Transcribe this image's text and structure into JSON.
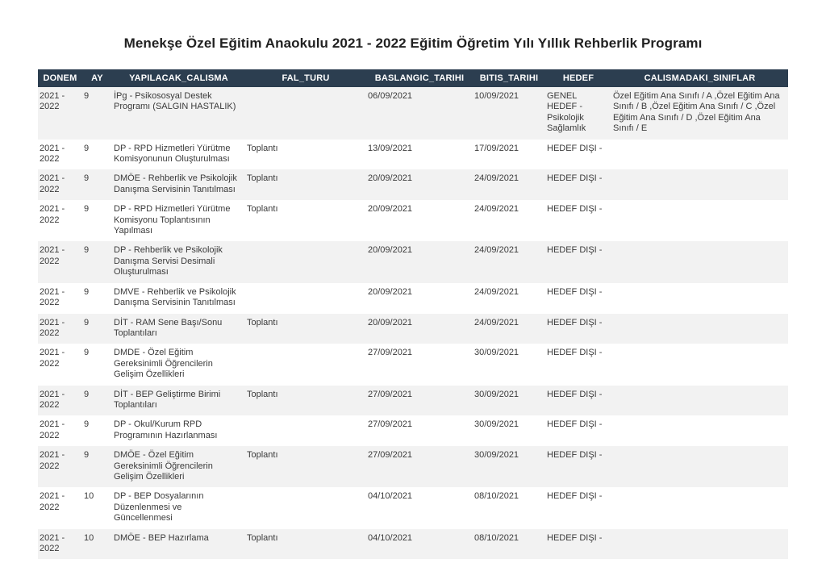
{
  "page": {
    "title": "Menekşe Özel Eğitim Anaokulu 2021 - 2022 Eğitim Öğretim Yılı Yıllık Rehberlik Programı"
  },
  "colors": {
    "header_bg": "#2c3e50",
    "header_text": "#ffffff",
    "stripe_row_bg": "#f2f2f2",
    "row_bg": "#ffffff",
    "body_text": "#3a3a3a"
  },
  "table": {
    "columns": [
      "DONEM",
      "AY",
      "YAPILACAK_CALISMA",
      "FAL_TURU",
      "BASLANGIC_TARIHI",
      "BITIS_TARIHI",
      "HEDEF",
      "CALISMADAKI_SINIFLAR"
    ],
    "rows": [
      [
        "2021 - 2022",
        "9",
        "İPg - Psikososyal Destek Programı (SALGIN HASTALIK)",
        "",
        "06/09/2021",
        "10/09/2021",
        "GENEL HEDEF - Psikolojik Sağlamlık",
        "Özel Eğitim Ana Sınıfı  / A ,Özel Eğitim Ana Sınıfı  / B ,Özel Eğitim Ana Sınıfı  / C ,Özel Eğitim Ana Sınıfı  / D ,Özel Eğitim Ana Sınıfı  / E"
      ],
      [
        "2021 - 2022",
        "9",
        "DP - RPD Hizmetleri Yürütme Komisyonunun Oluşturulması",
        "Toplantı",
        "13/09/2021",
        "17/09/2021",
        "HEDEF DIŞI -",
        ""
      ],
      [
        "2021 - 2022",
        "9",
        "DMÖE - Rehberlik ve Psikolojik Danışma Servisinin Tanıtılması",
        "Toplantı",
        "20/09/2021",
        "24/09/2021",
        "HEDEF DIŞI -",
        ""
      ],
      [
        "2021 - 2022",
        "9",
        "DP - RPD Hizmetleri Yürütme Komisyonu Toplantısının Yapılması",
        "Toplantı",
        "20/09/2021",
        "24/09/2021",
        "HEDEF DIŞI -",
        ""
      ],
      [
        "2021 - 2022",
        "9",
        "DP - Rehberlik ve Psikolojik Danışma Servisi Desimali Oluşturulması",
        "",
        "20/09/2021",
        "24/09/2021",
        "HEDEF DIŞI -",
        ""
      ],
      [
        "2021 - 2022",
        "9",
        "DMVE - Rehberlik ve Psikolojik Danışma Servisinin Tanıtılması",
        "",
        "20/09/2021",
        "24/09/2021",
        "HEDEF DIŞI -",
        ""
      ],
      [
        "2021 - 2022",
        "9",
        "DİT - RAM Sene Başı/Sonu Toplantıları",
        "Toplantı",
        "20/09/2021",
        "24/09/2021",
        "HEDEF DIŞI -",
        ""
      ],
      [
        "2021 - 2022",
        "9",
        "DMDE - Özel Eğitim Gereksinimli Öğrencilerin Gelişim Özellikleri",
        "",
        "27/09/2021",
        "30/09/2021",
        "HEDEF DIŞI -",
        ""
      ],
      [
        "2021 - 2022",
        "9",
        "DİT - BEP Geliştirme Birimi Toplantıları",
        "Toplantı",
        "27/09/2021",
        "30/09/2021",
        "HEDEF DIŞI -",
        ""
      ],
      [
        "2021 - 2022",
        "9",
        "DP - Okul/Kurum RPD Programının  Hazırlanması",
        "",
        "27/09/2021",
        "30/09/2021",
        "HEDEF DIŞI -",
        ""
      ],
      [
        "2021 - 2022",
        "9",
        "DMÖE - Özel Eğitim Gereksinimli Öğrencilerin Gelişim Özellikleri",
        "Toplantı",
        "27/09/2021",
        "30/09/2021",
        "HEDEF DIŞI -",
        ""
      ],
      [
        "2021 - 2022",
        "10",
        "DP - BEP Dosyalarının Düzenlenmesi ve Güncellenmesi",
        "",
        "04/10/2021",
        "08/10/2021",
        "HEDEF DIŞI -",
        ""
      ],
      [
        "2021 - 2022",
        "10",
        "DMÖE - BEP Hazırlama",
        "Toplantı",
        "04/10/2021",
        "08/10/2021",
        "HEDEF DIŞI -",
        ""
      ]
    ]
  }
}
